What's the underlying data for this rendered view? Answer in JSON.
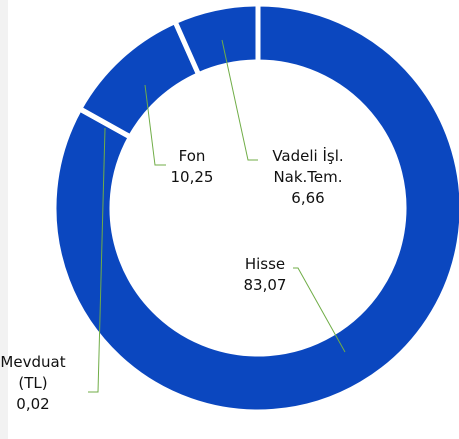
{
  "chart_data": {
    "type": "pie",
    "donut": true,
    "categories": [
      "Hisse",
      "Mevduat (TL)",
      "Fon",
      "Vadeli İşl. Nak.Tem."
    ],
    "values": [
      83.07,
      0.02,
      10.25,
      6.66
    ],
    "value_labels": [
      "83,07",
      "0,02",
      "10,25",
      "6,66"
    ],
    "color": "#0b47bf"
  }
}
